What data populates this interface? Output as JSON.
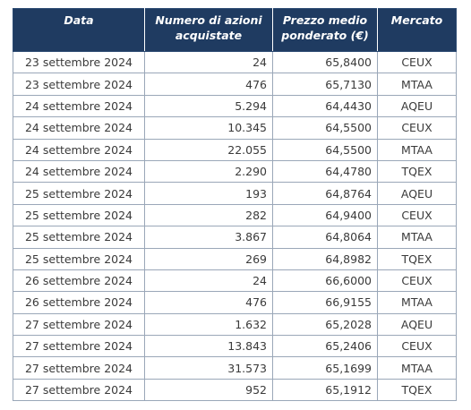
{
  "table": {
    "headers": {
      "date": "Data",
      "quantity": "Numero di azioni acquistate",
      "price": "Prezzo medio ponderato (€)",
      "market": "Mercato"
    },
    "rows": [
      {
        "date": "23 settembre 2024",
        "quantity": "24",
        "price": "65,8400",
        "market": "CEUX"
      },
      {
        "date": "23 settembre 2024",
        "quantity": "476",
        "price": "65,7130",
        "market": "MTAA"
      },
      {
        "date": "24 settembre 2024",
        "quantity": "5.294",
        "price": "64,4430",
        "market": "AQEU"
      },
      {
        "date": "24 settembre 2024",
        "quantity": "10.345",
        "price": "64,5500",
        "market": "CEUX"
      },
      {
        "date": "24 settembre 2024",
        "quantity": "22.055",
        "price": "64,5500",
        "market": "MTAA"
      },
      {
        "date": "24 settembre 2024",
        "quantity": "2.290",
        "price": "64,4780",
        "market": "TQEX"
      },
      {
        "date": "25 settembre 2024",
        "quantity": "193",
        "price": "64,8764",
        "market": "AQEU"
      },
      {
        "date": "25 settembre 2024",
        "quantity": "282",
        "price": "64,9400",
        "market": "CEUX"
      },
      {
        "date": "25 settembre 2024",
        "quantity": "3.867",
        "price": "64,8064",
        "market": "MTAA"
      },
      {
        "date": "25 settembre 2024",
        "quantity": "269",
        "price": "64,8982",
        "market": "TQEX"
      },
      {
        "date": "26 settembre 2024",
        "quantity": "24",
        "price": "66,6000",
        "market": "CEUX"
      },
      {
        "date": "26 settembre 2024",
        "quantity": "476",
        "price": "66,9155",
        "market": "MTAA"
      },
      {
        "date": "27 settembre 2024",
        "quantity": "1.632",
        "price": "65,2028",
        "market": "AQEU"
      },
      {
        "date": "27 settembre 2024",
        "quantity": "13.843",
        "price": "65,2406",
        "market": "CEUX"
      },
      {
        "date": "27 settembre 2024",
        "quantity": "31.573",
        "price": "65,1699",
        "market": "MTAA"
      },
      {
        "date": "27 settembre 2024",
        "quantity": "952",
        "price": "65,1912",
        "market": "TQEX"
      }
    ]
  },
  "colors": {
    "header_bg": "#1f3b61",
    "header_text": "#ffffff",
    "border": "#9aa7b8",
    "cell_text": "#3a3a3a"
  }
}
